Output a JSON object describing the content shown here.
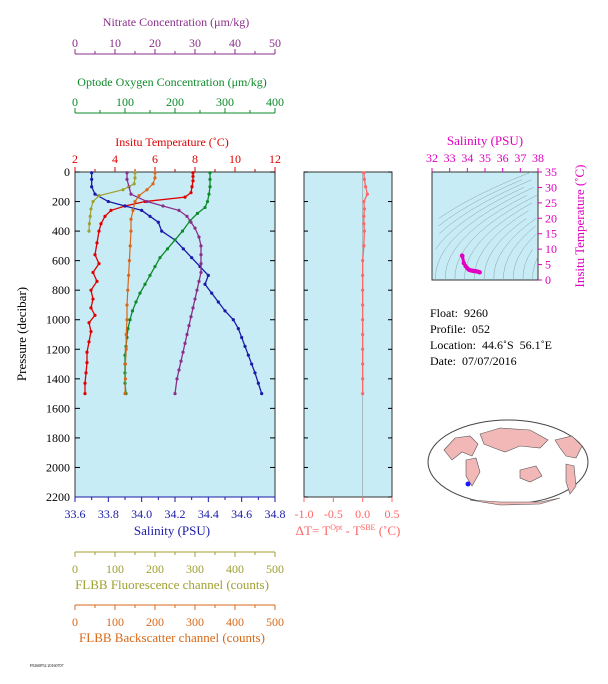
{
  "colors": {
    "nitrate": "#8b2f8b",
    "oxygen": "#0d8a2a",
    "temperature": "#e00000",
    "salinity": "#1a1aa8",
    "fluorescence": "#a0a030",
    "backscatter": "#d86818",
    "delta_t": "#ff6666",
    "salinity_panel": "#e000c0",
    "plot_bg": "#c8ecf6"
  },
  "info": {
    "float": "Float:  9260",
    "profile": "Profile:  052",
    "location": "Location:  44.6˚S  56.1˚E",
    "date": "Date:  07/07/2016"
  },
  "footer": "F9260P52 20160707",
  "chart_data": [
    {
      "type": "line",
      "panel": "profile",
      "ylabel": "Pressure (decibar)",
      "ylim": [
        2200,
        0
      ],
      "y_ticks": [
        0,
        200,
        400,
        600,
        800,
        1000,
        1200,
        1400,
        1600,
        1800,
        2000,
        2200
      ],
      "axes": {
        "nitrate": {
          "label": "Nitrate Concentration (μm/kg)",
          "range": [
            0,
            50
          ],
          "ticks": [
            0,
            10,
            20,
            30,
            40,
            50
          ]
        },
        "oxygen": {
          "label": "Optode Oxygen Concentration (μm/kg)",
          "range": [
            0,
            400
          ],
          "ticks": [
            0,
            100,
            200,
            300,
            400
          ]
        },
        "temperature": {
          "label": "Insitu Temperature (˚C)",
          "range": [
            2,
            12
          ],
          "ticks": [
            2,
            4,
            6,
            8,
            10,
            12
          ]
        },
        "salinity": {
          "label": "Salinity (PSU)",
          "range": [
            33.6,
            34.8
          ],
          "ticks": [
            "33.6",
            "33.8",
            "34.0",
            "34.2",
            "34.4",
            "34.6",
            "34.8"
          ]
        },
        "fluorescence": {
          "label": "FLBB Fluorescence channel (counts)",
          "range": [
            0,
            500
          ],
          "ticks": [
            0,
            100,
            200,
            300,
            400,
            500
          ]
        },
        "backscatter": {
          "label": "FLBB Backscatter channel (counts)",
          "range": [
            0,
            500
          ],
          "ticks": [
            0,
            100,
            200,
            300,
            400,
            500
          ]
        }
      },
      "series": [
        {
          "key": "temperature",
          "points": [
            [
              7.9,
              5
            ],
            [
              7.9,
              30
            ],
            [
              7.9,
              60
            ],
            [
              7.85,
              100
            ],
            [
              7.8,
              140
            ],
            [
              7.5,
              170
            ],
            [
              5.5,
              200
            ],
            [
              4.5,
              230
            ],
            [
              3.8,
              260
            ],
            [
              3.5,
              300
            ],
            [
              3.3,
              350
            ],
            [
              3.2,
              400
            ],
            [
              3.1,
              480
            ],
            [
              3.0,
              560
            ],
            [
              3.2,
              620
            ],
            [
              2.9,
              680
            ],
            [
              3.1,
              740
            ],
            [
              2.8,
              800
            ],
            [
              2.9,
              860
            ],
            [
              2.8,
              920
            ],
            [
              3.0,
              970
            ],
            [
              2.7,
              1020
            ],
            [
              2.8,
              1080
            ],
            [
              2.7,
              1150
            ],
            [
              2.6,
              1220
            ],
            [
              2.6,
              1290
            ],
            [
              2.55,
              1360
            ],
            [
              2.5,
              1430
            ],
            [
              2.5,
              1500
            ]
          ]
        },
        {
          "key": "salinity",
          "points": [
            [
              33.7,
              5
            ],
            [
              33.7,
              50
            ],
            [
              33.7,
              100
            ],
            [
              33.72,
              150
            ],
            [
              33.8,
              200
            ],
            [
              33.9,
              230
            ],
            [
              34.0,
              260
            ],
            [
              34.05,
              300
            ],
            [
              34.1,
              340
            ],
            [
              34.12,
              400
            ],
            [
              34.2,
              460
            ],
            [
              34.25,
              520
            ],
            [
              34.3,
              580
            ],
            [
              34.35,
              640
            ],
            [
              34.4,
              700
            ],
            [
              34.38,
              760
            ],
            [
              34.42,
              820
            ],
            [
              34.46,
              880
            ],
            [
              34.5,
              940
            ],
            [
              34.55,
              1000
            ],
            [
              34.58,
              1060
            ],
            [
              34.6,
              1120
            ],
            [
              34.62,
              1180
            ],
            [
              34.64,
              1240
            ],
            [
              34.66,
              1300
            ],
            [
              34.68,
              1360
            ],
            [
              34.7,
              1430
            ],
            [
              34.72,
              1500
            ]
          ]
        },
        {
          "key": "oxygen",
          "points": [
            [
              270,
              5
            ],
            [
              270,
              50
            ],
            [
              270,
              100
            ],
            [
              268,
              150
            ],
            [
              265,
              200
            ],
            [
              260,
              240
            ],
            [
              245,
              280
            ],
            [
              230,
              330
            ],
            [
              215,
              400
            ],
            [
              200,
              460
            ],
            [
              185,
              520
            ],
            [
              170,
              580
            ],
            [
              160,
              640
            ],
            [
              150,
              700
            ],
            [
              140,
              760
            ],
            [
              130,
              820
            ],
            [
              122,
              880
            ],
            [
              115,
              940
            ],
            [
              110,
              1000
            ],
            [
              106,
              1060
            ],
            [
              104,
              1120
            ],
            [
              102,
              1180
            ],
            [
              100,
              1240
            ],
            [
              100,
              1300
            ],
            [
              100,
              1360
            ],
            [
              100,
              1430
            ],
            [
              102,
              1500
            ]
          ]
        },
        {
          "key": "nitrate",
          "points": [
            [
              13,
              5
            ],
            [
              13,
              50
            ],
            [
              13.5,
              100
            ],
            [
              14,
              150
            ],
            [
              18,
              200
            ],
            [
              22,
              230
            ],
            [
              26,
              260
            ],
            [
              28,
              300
            ],
            [
              29,
              340
            ],
            [
              30,
              380
            ],
            [
              31,
              440
            ],
            [
              31.5,
              500
            ],
            [
              31.5,
              560
            ],
            [
              31.5,
              620
            ],
            [
              31.5,
              680
            ],
            [
              31,
              740
            ],
            [
              30.5,
              800
            ],
            [
              30,
              860
            ],
            [
              29.5,
              920
            ],
            [
              29,
              980
            ],
            [
              28.5,
              1040
            ],
            [
              28,
              1100
            ],
            [
              27.5,
              1160
            ],
            [
              27,
              1220
            ],
            [
              26.5,
              1280
            ],
            [
              26,
              1340
            ],
            [
              25.5,
              1400
            ],
            [
              25,
              1500
            ]
          ]
        },
        {
          "key": "fluorescence",
          "points": [
            [
              150,
              5
            ],
            [
              150,
              40
            ],
            [
              148,
              80
            ],
            [
              120,
              120
            ],
            [
              60,
              160
            ],
            [
              45,
              200
            ],
            [
              40,
              250
            ],
            [
              38,
              300
            ],
            [
              36,
              350
            ],
            [
              35,
              400
            ]
          ]
        },
        {
          "key": "backscatter",
          "points": [
            [
              200,
              5
            ],
            [
              200,
              40
            ],
            [
              195,
              80
            ],
            [
              180,
              120
            ],
            [
              160,
              160
            ],
            [
              150,
              200
            ],
            [
              145,
              260
            ],
            [
              140,
              320
            ],
            [
              140,
              400
            ],
            [
              138,
              500
            ],
            [
              136,
              600
            ],
            [
              134,
              700
            ],
            [
              132,
              800
            ],
            [
              130,
              900
            ],
            [
              130,
              1000
            ],
            [
              128,
              1100
            ],
            [
              128,
              1200
            ],
            [
              126,
              1300
            ],
            [
              126,
              1400
            ],
            [
              125,
              1500
            ]
          ]
        }
      ]
    },
    {
      "type": "line",
      "panel": "delta-t",
      "xlabel": "ΔT= T^Opt - T^SBE (˚C)",
      "xlim": [
        -1.0,
        0.5
      ],
      "x_ticks": [
        "-1.0",
        "-0.5",
        "0.0",
        "0.5"
      ],
      "ylim": [
        2200,
        0
      ],
      "points": [
        [
          0.02,
          5
        ],
        [
          0.03,
          50
        ],
        [
          0.05,
          100
        ],
        [
          0.08,
          150
        ],
        [
          0.02,
          200
        ],
        [
          0.03,
          250
        ],
        [
          0.02,
          300
        ],
        [
          0.02,
          350
        ],
        [
          0.03,
          400
        ],
        [
          0.02,
          500
        ],
        [
          0.0,
          600
        ],
        [
          0.0,
          700
        ],
        [
          0.0,
          800
        ],
        [
          0.0,
          900
        ],
        [
          0.0,
          1000
        ],
        [
          0.0,
          1100
        ],
        [
          0.0,
          1200
        ],
        [
          0.0,
          1300
        ],
        [
          0.0,
          1400
        ],
        [
          0.0,
          1500
        ]
      ]
    },
    {
      "type": "scatter",
      "panel": "ts-diagram",
      "xlabel": "Salinity (PSU)",
      "ylabel": "Insitu Temperature (˚C)",
      "xlim": [
        32,
        38
      ],
      "ylim": [
        0,
        35
      ],
      "x_ticks": [
        "32",
        "33",
        "34",
        "35",
        "36",
        "37",
        "38"
      ],
      "y_ticks": [
        "0",
        "5",
        "10",
        "15",
        "20",
        "25",
        "30",
        "35"
      ],
      "points": [
        [
          33.7,
          7.9
        ],
        [
          33.72,
          7.8
        ],
        [
          33.8,
          5.5
        ],
        [
          33.9,
          4.5
        ],
        [
          34.0,
          3.8
        ],
        [
          34.1,
          3.3
        ],
        [
          34.2,
          3.1
        ],
        [
          34.3,
          3.0
        ],
        [
          34.4,
          2.9
        ],
        [
          34.5,
          2.8
        ],
        [
          34.6,
          2.7
        ],
        [
          34.7,
          2.5
        ]
      ]
    }
  ]
}
